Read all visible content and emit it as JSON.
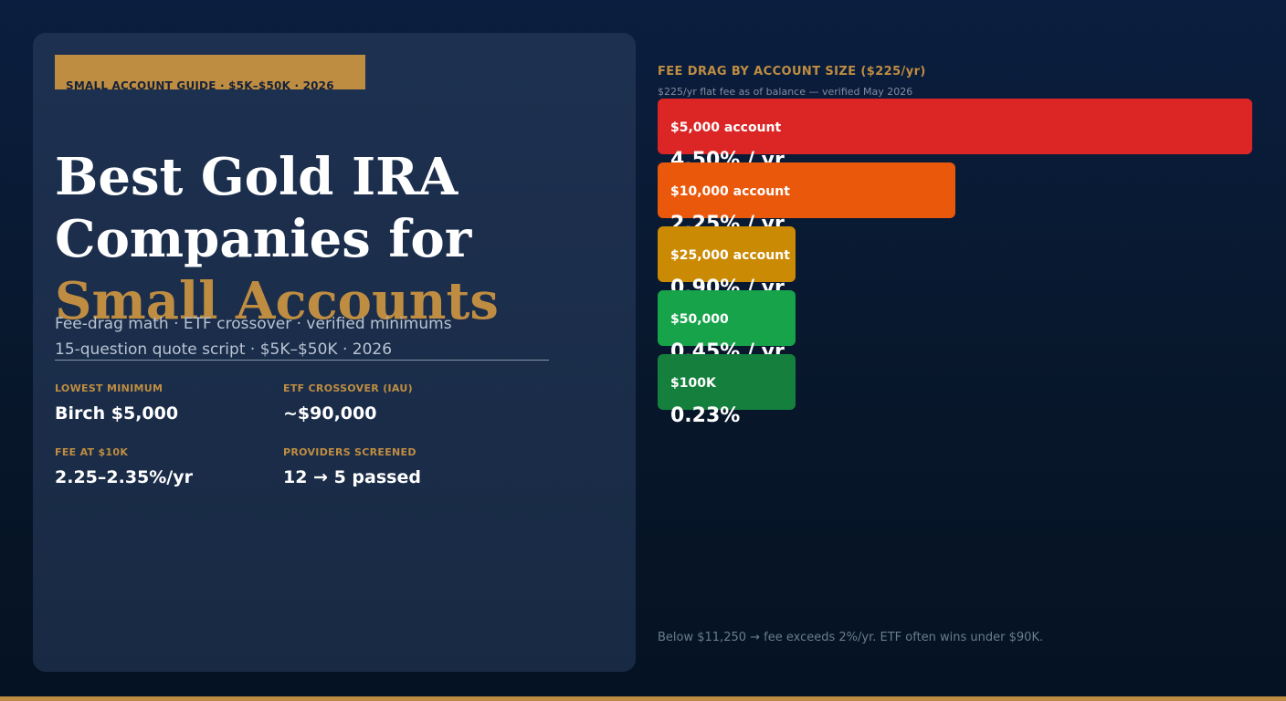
{
  "tag": "SMALL ACCOUNT GUIDE · $5K–$50K · 2026",
  "title": {
    "line1": "Best Gold IRA",
    "line2": "Companies for",
    "line3": "Small Accounts"
  },
  "subtitle": {
    "line1": "Fee-drag math · ETF crossover · verified minimums",
    "line2": "15-question quote script · $5K–$50K · 2026"
  },
  "stats": [
    {
      "label": "LOWEST MINIMUM",
      "value": "Birch $5,000"
    },
    {
      "label": "ETF CROSSOVER (IAU)",
      "value": "~$90,000"
    },
    {
      "label": "FEE AT $10K",
      "value": "2.25–2.35%/yr"
    },
    {
      "label": "PROVIDERS SCREENED",
      "value": "12 → 5 passed"
    }
  ],
  "chart_data": {
    "type": "bar",
    "orientation": "horizontal",
    "title": "FEE DRAG BY ACCOUNT SIZE ($225/yr)",
    "subtitle": "$225/yr flat fee as of balance — verified May 2026",
    "categories": [
      "$5,000 account",
      "$10,000 account",
      "$25,000 account",
      "$50,000",
      "$100K"
    ],
    "values": [
      4.5,
      2.25,
      0.9,
      0.45,
      0.23
    ],
    "value_labels": [
      "4.50% / yr",
      "2.25% / yr",
      "0.90% / yr",
      "0.45% / yr",
      "0.23%"
    ],
    "colors": [
      "#dc2626",
      "#ea580c",
      "#ca8a04",
      "#16a34a",
      "#15803d"
    ],
    "legend": "none",
    "grid": false
  },
  "footnote": "Below $11,250 → fee exceeds 2%/yr. ETF often wins under $90K.",
  "colors": {
    "accent": "#bf8d42",
    "panel": "#1d3050",
    "background": "#0b1e3f"
  }
}
